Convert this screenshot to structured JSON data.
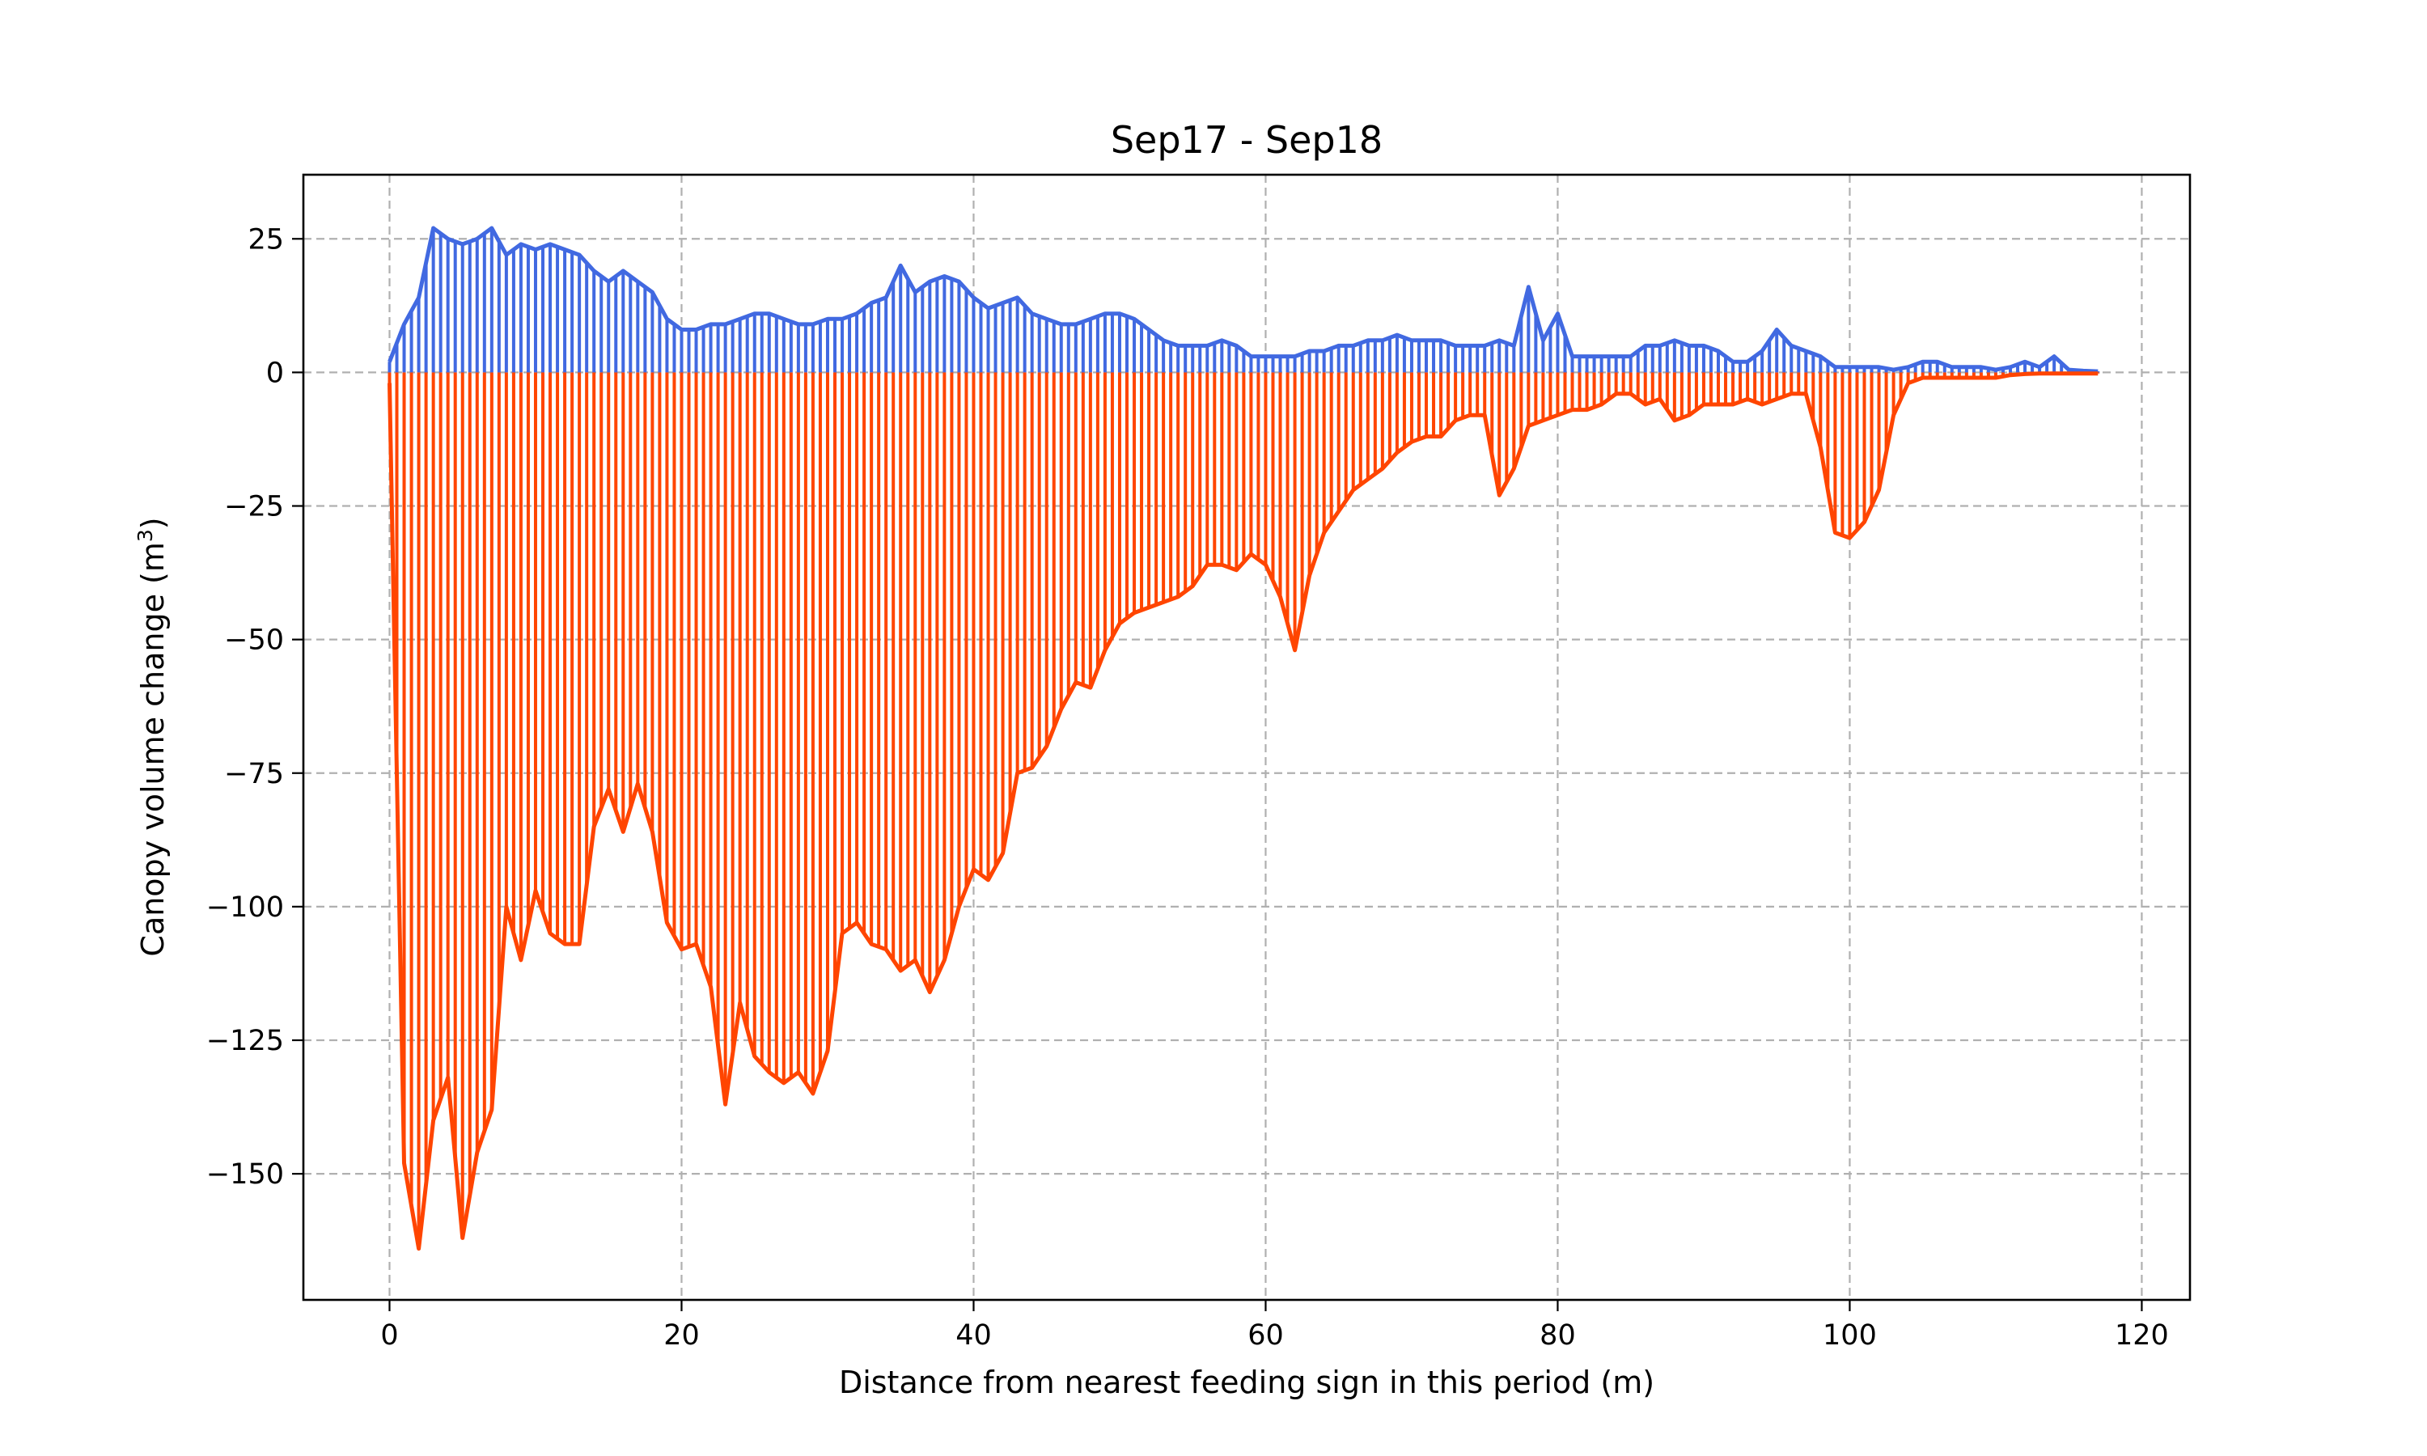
{
  "chart_data": {
    "type": "bar",
    "title": "Sep17 - Sep18",
    "xlabel": "Distance from nearest feeding sign in this period (m)",
    "ylabel": "Canopy volume change (m",
    "ylabel_sup": "3",
    "ylabel_close": ")",
    "xlim": [
      -5.9,
      123.3
    ],
    "ylim": [
      -173.6,
      37.0
    ],
    "grid": true,
    "xticks": [
      0,
      20,
      40,
      60,
      80,
      100,
      120
    ],
    "xtick_labels": [
      "0",
      "20",
      "40",
      "60",
      "80",
      "100",
      "120"
    ],
    "yticks": [
      25,
      0,
      -25,
      -50,
      -75,
      -100,
      -125,
      -150
    ],
    "ytick_labels": [
      "25",
      "0",
      "−25",
      "−50",
      "−75",
      "−100",
      "−125",
      "−150"
    ],
    "series": [
      {
        "key": "gain",
        "color": "#4169e1",
        "x": [
          0,
          1,
          2,
          3,
          4,
          5,
          6,
          7,
          8,
          9,
          10,
          11,
          12,
          13,
          14,
          15,
          16,
          17,
          18,
          19,
          20,
          21,
          22,
          23,
          24,
          25,
          26,
          27,
          28,
          29,
          30,
          31,
          32,
          33,
          34,
          35,
          36,
          37,
          38,
          39,
          40,
          41,
          42,
          43,
          44,
          45,
          46,
          47,
          48,
          49,
          50,
          51,
          52,
          53,
          54,
          55,
          56,
          57,
          58,
          59,
          60,
          61,
          62,
          63,
          64,
          65,
          66,
          67,
          68,
          69,
          70,
          71,
          72,
          73,
          74,
          75,
          76,
          77,
          78,
          79,
          80,
          81,
          82,
          83,
          84,
          85,
          86,
          87,
          88,
          89,
          90,
          91,
          92,
          93,
          94,
          95,
          96,
          97,
          98,
          99,
          100,
          101,
          102,
          103,
          104,
          105,
          106,
          107,
          108,
          109,
          110,
          111,
          112,
          113,
          114,
          115,
          116,
          117
        ],
        "values": [
          2,
          9,
          14,
          27,
          25,
          24,
          25,
          27,
          22,
          24,
          23,
          24,
          23,
          22,
          19,
          17,
          19,
          17,
          15,
          10,
          8,
          8,
          9,
          9,
          10,
          11,
          11,
          10,
          9,
          9,
          10,
          10,
          11,
          13,
          14,
          20,
          15,
          17,
          18,
          17,
          14,
          12,
          13,
          14,
          11,
          10,
          9,
          9,
          10,
          11,
          11,
          10,
          8,
          6,
          5,
          5,
          5,
          6,
          5,
          3,
          3,
          3,
          3,
          4,
          4,
          5,
          5,
          6,
          6,
          7,
          6,
          6,
          6,
          5,
          5,
          5,
          6,
          5,
          16,
          6,
          11,
          3,
          3,
          3,
          3,
          3,
          5,
          5,
          6,
          5,
          5,
          4,
          2,
          2,
          4,
          8,
          5,
          4,
          3,
          1,
          1,
          1,
          1,
          0.5,
          1,
          2,
          2,
          1,
          1,
          1,
          0.5,
          1,
          2,
          1,
          3,
          0.5,
          0.3,
          0.2
        ]
      },
      {
        "key": "loss",
        "color": "#ff4500",
        "x": [
          0,
          1,
          2,
          3,
          4,
          5,
          6,
          7,
          8,
          9,
          10,
          11,
          12,
          13,
          14,
          15,
          16,
          17,
          18,
          19,
          20,
          21,
          22,
          23,
          24,
          25,
          26,
          27,
          28,
          29,
          30,
          31,
          32,
          33,
          34,
          35,
          36,
          37,
          38,
          39,
          40,
          41,
          42,
          43,
          44,
          45,
          46,
          47,
          48,
          49,
          50,
          51,
          52,
          53,
          54,
          55,
          56,
          57,
          58,
          59,
          60,
          61,
          62,
          63,
          64,
          65,
          66,
          67,
          68,
          69,
          70,
          71,
          72,
          73,
          74,
          75,
          76,
          77,
          78,
          79,
          80,
          81,
          82,
          83,
          84,
          85,
          86,
          87,
          88,
          89,
          90,
          91,
          92,
          93,
          94,
          95,
          96,
          97,
          98,
          99,
          100,
          101,
          102,
          103,
          104,
          105,
          106,
          107,
          108,
          109,
          110,
          111,
          112,
          113,
          114,
          115,
          116,
          117
        ],
        "values": [
          -2,
          -148,
          -164,
          -140,
          -132,
          -162,
          -146,
          -138,
          -100,
          -110,
          -97,
          -105,
          -107,
          -107,
          -85,
          -78,
          -86,
          -77,
          -86,
          -103,
          -108,
          -107,
          -115,
          -137,
          -118,
          -128,
          -131,
          -133,
          -131,
          -135,
          -127,
          -105,
          -103,
          -107,
          -108,
          -112,
          -110,
          -116,
          -110,
          -100,
          -93,
          -95,
          -90,
          -75,
          -74,
          -70,
          -63,
          -58,
          -59,
          -52,
          -47,
          -45,
          -44,
          -43,
          -42,
          -40,
          -36,
          -36,
          -37,
          -34,
          -36,
          -42,
          -52,
          -38,
          -30,
          -26,
          -22,
          -20,
          -18,
          -15,
          -13,
          -12,
          -12,
          -9,
          -8,
          -8,
          -23,
          -18,
          -10,
          -9,
          -8,
          -7,
          -7,
          -6,
          -4,
          -4,
          -6,
          -5,
          -9,
          -8,
          -6,
          -6,
          -6,
          -5,
          -6,
          -5,
          -4,
          -4,
          -14,
          -30,
          -31,
          -28,
          -22,
          -8,
          -2,
          -1,
          -1,
          -1,
          -1,
          -1,
          -1,
          -0.5,
          -0.3,
          -0.2,
          -0.2,
          -0.2,
          -0.2,
          -0.2
        ]
      }
    ]
  }
}
